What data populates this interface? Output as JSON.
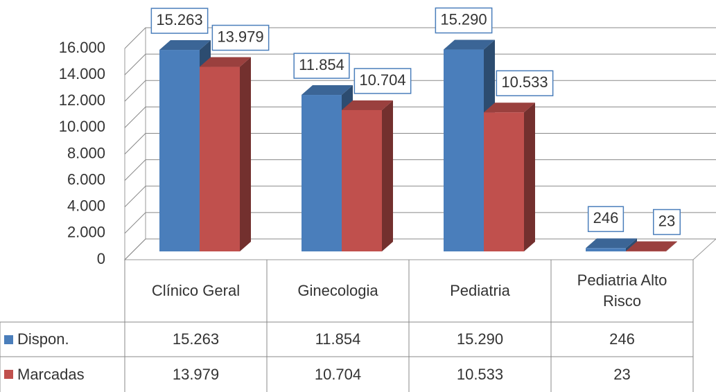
{
  "chart_data": {
    "type": "bar3d",
    "categories": [
      "Clínico Geral",
      "Ginecologia",
      "Pediatria",
      "Pediatria Alto Risco"
    ],
    "series": [
      {
        "name": "Dispon.",
        "color": "#4a7ebb",
        "values": [
          15263,
          11854,
          15290,
          246
        ],
        "value_labels": [
          "15.263",
          "11.854",
          "15.290",
          "246"
        ]
      },
      {
        "name": "Marcadas",
        "color": "#c0504d",
        "values": [
          13979,
          10704,
          10533,
          23
        ],
        "value_labels": [
          "13.979",
          "10.704",
          "10.533",
          "23"
        ]
      }
    ],
    "ylim": [
      0,
      16000
    ],
    "yticks": [
      0,
      {
        "value": 2000,
        "label": "2.000"
      },
      {
        "value": 4000,
        "label": "4.000"
      },
      {
        "value": 6000,
        "label": "6.000"
      },
      {
        "value": 8000,
        "label": "8.000"
      },
      {
        "value": 10000,
        "label": "10.000"
      },
      {
        "value": 12000,
        "label": "12.000"
      },
      {
        "value": 14000,
        "label": "14.000"
      },
      {
        "value": 16000,
        "label": "16.000"
      }
    ],
    "grid": true,
    "data_table": true
  }
}
